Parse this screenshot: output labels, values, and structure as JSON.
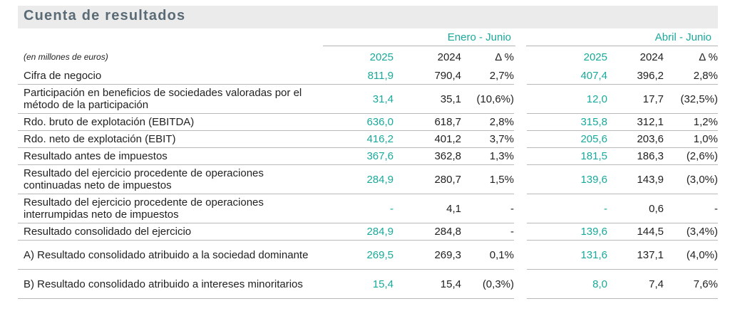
{
  "title": "Cuenta de resultados",
  "groups": [
    "Enero - Junio",
    "Abril - Junio"
  ],
  "unit_note": "(en millones de euros)",
  "columns": [
    "2025",
    "2024",
    "Δ %"
  ],
  "colors": {
    "accent": "#19a99b",
    "title_bg": "#ebebeb",
    "title_text": "#5b6b76"
  },
  "rows": [
    {
      "label": "Cifra de negocio",
      "h1": [
        "811,9",
        "790,4",
        "2,7%"
      ],
      "h2": [
        "407,4",
        "396,2",
        "2,8%"
      ]
    },
    {
      "label": "Participación en beneficios de sociedades valoradas por el método de la participación",
      "h1": [
        "31,4",
        "35,1",
        "(10,6%)"
      ],
      "h2": [
        "12,0",
        "17,7",
        "(32,5%)"
      ]
    },
    {
      "label": "Rdo. bruto de explotación (EBITDA)",
      "h1": [
        "636,0",
        "618,7",
        "2,8%"
      ],
      "h2": [
        "315,8",
        "312,1",
        "1,2%"
      ]
    },
    {
      "label": "Rdo. neto de explotación (EBIT)",
      "h1": [
        "416,2",
        "401,2",
        "3,7%"
      ],
      "h2": [
        "205,6",
        "203,6",
        "1,0%"
      ]
    },
    {
      "label": "Resultado antes de impuestos",
      "h1": [
        "367,6",
        "362,8",
        "1,3%"
      ],
      "h2": [
        "181,5",
        "186,3",
        "(2,6%)"
      ]
    },
    {
      "label": "Resultado del ejercicio procedente de operaciones continuadas neto de impuestos",
      "h1": [
        "284,9",
        "280,7",
        "1,5%"
      ],
      "h2": [
        "139,6",
        "143,9",
        "(3,0%)"
      ]
    },
    {
      "label": "Resultado del ejercicio procedente de operaciones interrumpidas neto de impuestos",
      "h1": [
        "-",
        "4,1",
        "-"
      ],
      "h2": [
        "-",
        "0,6",
        "-"
      ]
    },
    {
      "label": "Resultado consolidado del ejercicio",
      "h1": [
        "284,9",
        "284,8",
        "-"
      ],
      "h2": [
        "139,6",
        "144,5",
        "(3,4%)"
      ]
    },
    {
      "label": "A) Resultado consolidado atribuido a la sociedad dominante",
      "h1": [
        "269,5",
        "269,3",
        "0,1%"
      ],
      "h2": [
        "131,6",
        "137,1",
        "(4,0%)"
      ]
    },
    {
      "label": "B) Resultado consolidado atribuido a intereses minoritarios",
      "h1": [
        "15,4",
        "15,4",
        "(0,3%)"
      ],
      "h2": [
        "8,0",
        "7,4",
        "7,6%"
      ]
    }
  ]
}
